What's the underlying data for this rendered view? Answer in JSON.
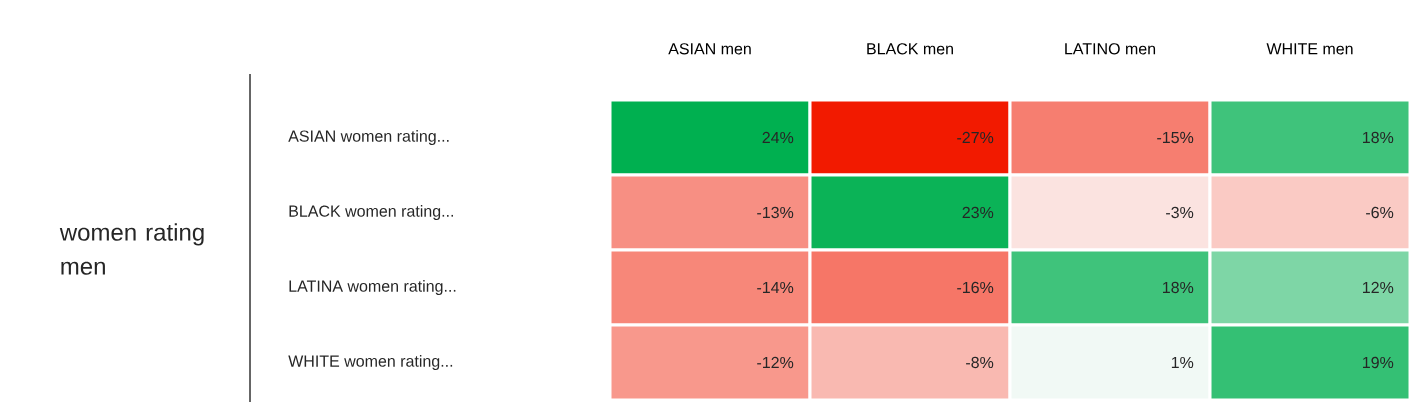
{
  "chart_data": {
    "type": "heatmap",
    "ylabel": "women rating men",
    "categories": [
      "ASIAN men",
      "BLACK men",
      "LATINO men",
      "WHITE men"
    ],
    "y_categories": [
      "ASIAN women rating...",
      "BLACK women rating...",
      "LATINA women rating...",
      "WHITE women rating..."
    ],
    "cells": [
      [
        24,
        -27,
        -15,
        18
      ],
      [
        -13,
        23,
        -3,
        -6
      ],
      [
        -14,
        -16,
        18,
        12
      ],
      [
        -12,
        -8,
        1,
        19
      ]
    ],
    "cell_labels": [
      [
        "24%",
        "-27%",
        "-15%",
        "18%"
      ],
      [
        "-13%",
        "23%",
        "-3%",
        "-6%"
      ],
      [
        "-14%",
        "-16%",
        "18%",
        "12%"
      ],
      [
        "-12%",
        "-8%",
        "1%",
        "19%"
      ]
    ]
  }
}
